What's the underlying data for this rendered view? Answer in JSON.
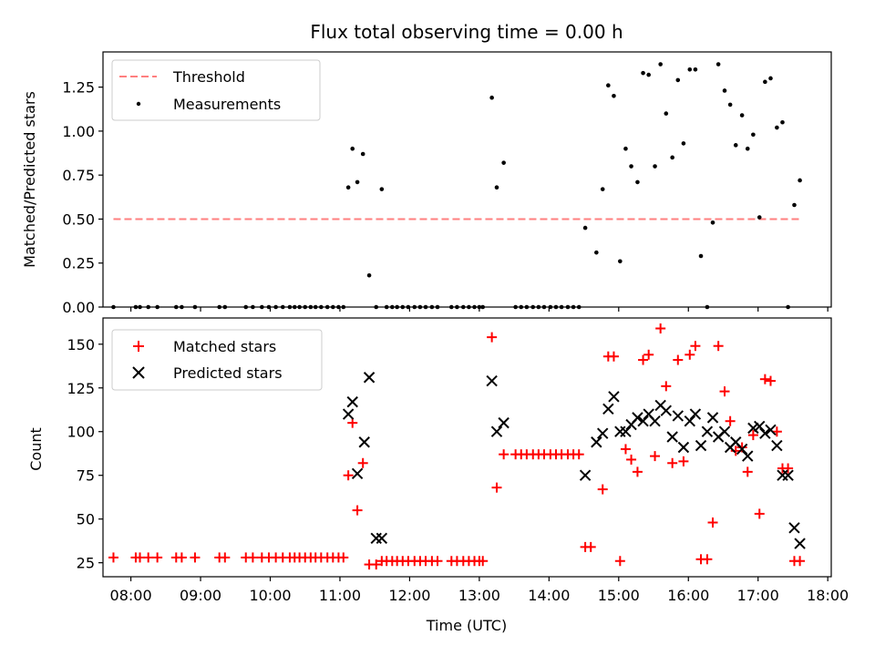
{
  "chart_data": [
    {
      "type": "scatter",
      "title": "Flux total observing time = 0.00 h",
      "xlabel": "",
      "ylabel": "Matched/Predicted stars",
      "x_ticks": [
        "08:00",
        "09:00",
        "10:00",
        "11:00",
        "12:00",
        "13:00",
        "14:00",
        "15:00",
        "16:00",
        "17:00",
        "18:00"
      ],
      "y_ticks": [
        "0.00",
        "0.25",
        "0.50",
        "0.75",
        "1.00",
        "1.25"
      ],
      "ylim": [
        0,
        1.45
      ],
      "xlim_hours": [
        7.6,
        18.05
      ],
      "legend_position": "upper-left",
      "series": [
        {
          "name": "Threshold",
          "kind": "line",
          "style": "dashed",
          "color": "#ff7f7f",
          "x": [
            7.75,
            17.6
          ],
          "y": [
            0.5,
            0.5
          ]
        },
        {
          "name": "Measurements",
          "kind": "points",
          "color": "#000000",
          "x": [
            7.75,
            8.07,
            8.13,
            8.25,
            8.38,
            8.65,
            8.73,
            8.92,
            9.27,
            9.35,
            9.65,
            9.75,
            9.88,
            9.98,
            10.08,
            10.18,
            10.28,
            10.35,
            10.42,
            10.5,
            10.58,
            10.65,
            10.73,
            10.82,
            10.9,
            10.98,
            11.05,
            11.12,
            11.18,
            11.25,
            11.33,
            11.42,
            11.52,
            11.6,
            11.67,
            11.75,
            11.82,
            11.9,
            11.98,
            12.07,
            12.15,
            12.23,
            12.32,
            12.4,
            12.6,
            12.68,
            12.77,
            12.85,
            12.93,
            13.0,
            13.05,
            13.18,
            13.25,
            13.35,
            13.52,
            13.6,
            13.68,
            13.77,
            13.85,
            13.93,
            14.02,
            14.1,
            14.18,
            14.27,
            14.35,
            14.43,
            14.52,
            14.68,
            14.77,
            14.85,
            14.93,
            15.02,
            15.1,
            15.18,
            15.27,
            15.35,
            15.43,
            15.52,
            15.6,
            15.68,
            15.77,
            15.85,
            15.93,
            16.02,
            16.1,
            16.18,
            16.27,
            16.35,
            16.43,
            16.52,
            16.6,
            16.68,
            16.77,
            16.85,
            16.93,
            17.02,
            17.1,
            17.18,
            17.27,
            17.35,
            17.43,
            17.52,
            17.6
          ],
          "y": [
            0,
            0,
            0,
            0,
            0,
            0,
            0,
            0,
            0,
            0,
            0,
            0,
            0,
            0,
            0,
            0,
            0,
            0,
            0,
            0,
            0,
            0,
            0,
            0,
            0,
            0,
            0,
            0.68,
            0.9,
            0.71,
            0.87,
            0.18,
            0,
            0.67,
            0,
            0,
            0,
            0,
            0,
            0,
            0,
            0,
            0,
            0,
            0,
            0,
            0,
            0,
            0,
            0,
            0,
            1.19,
            0.68,
            0.82,
            0,
            0,
            0,
            0,
            0,
            0,
            0,
            0,
            0,
            0,
            0,
            0,
            0.45,
            0.31,
            0.67,
            1.26,
            1.2,
            0.26,
            0.9,
            0.8,
            0.71,
            1.33,
            1.32,
            0.8,
            1.38,
            1.1,
            0.85,
            1.29,
            0.93,
            1.35,
            1.35,
            0.29,
            0,
            0.48,
            1.38,
            1.23,
            1.15,
            0.92,
            1.09,
            0.9,
            0.98,
            0.51,
            1.28,
            1.3,
            1.02,
            1.05,
            0,
            0.58,
            0.72
          ]
        }
      ]
    },
    {
      "type": "scatter",
      "title": "",
      "xlabel": "Time (UTC)",
      "ylabel": "Count",
      "x_ticks": [
        "08:00",
        "09:00",
        "10:00",
        "11:00",
        "12:00",
        "13:00",
        "14:00",
        "15:00",
        "16:00",
        "17:00",
        "18:00"
      ],
      "y_ticks": [
        "25",
        "50",
        "75",
        "100",
        "125",
        "150"
      ],
      "ylim": [
        17,
        165
      ],
      "xlim_hours": [
        7.6,
        18.05
      ],
      "legend_position": "upper-left",
      "series": [
        {
          "name": "Matched stars",
          "kind": "plus",
          "color": "#ff0000",
          "x": [
            7.75,
            8.07,
            8.13,
            8.25,
            8.38,
            8.65,
            8.73,
            8.92,
            9.27,
            9.35,
            9.65,
            9.75,
            9.88,
            9.98,
            10.08,
            10.18,
            10.28,
            10.35,
            10.42,
            10.5,
            10.58,
            10.65,
            10.73,
            10.82,
            10.9,
            10.98,
            11.05,
            11.12,
            11.18,
            11.25,
            11.33,
            11.42,
            11.52,
            11.6,
            11.67,
            11.75,
            11.82,
            11.9,
            11.98,
            12.07,
            12.15,
            12.23,
            12.32,
            12.4,
            12.6,
            12.68,
            12.77,
            12.85,
            12.93,
            13.0,
            13.05,
            13.18,
            13.25,
            13.35,
            13.52,
            13.6,
            13.68,
            13.77,
            13.85,
            13.93,
            14.02,
            14.1,
            14.18,
            14.27,
            14.35,
            14.43,
            14.52,
            14.6,
            14.77,
            14.85,
            14.93,
            15.02,
            15.1,
            15.18,
            15.27,
            15.35,
            15.43,
            15.52,
            15.6,
            15.68,
            15.77,
            15.85,
            15.93,
            16.02,
            16.1,
            16.18,
            16.27,
            16.35,
            16.43,
            16.52,
            16.6,
            16.68,
            16.77,
            16.85,
            16.93,
            17.02,
            17.1,
            17.18,
            17.27,
            17.35,
            17.43,
            17.52,
            17.6
          ],
          "y": [
            28,
            28,
            28,
            28,
            28,
            28,
            28,
            28,
            28,
            28,
            28,
            28,
            28,
            28,
            28,
            28,
            28,
            28,
            28,
            28,
            28,
            28,
            28,
            28,
            28,
            28,
            28,
            75,
            105,
            55,
            82,
            24,
            24,
            26,
            26,
            26,
            26,
            26,
            26,
            26,
            26,
            26,
            26,
            26,
            26,
            26,
            26,
            26,
            26,
            26,
            26,
            154,
            68,
            87,
            87,
            87,
            87,
            87,
            87,
            87,
            87,
            87,
            87,
            87,
            87,
            87,
            34,
            34,
            67,
            143,
            143,
            26,
            90,
            84,
            77,
            141,
            144,
            86,
            159,
            126,
            82,
            141,
            83,
            144,
            149,
            27,
            27,
            48,
            149,
            123,
            106,
            89,
            91,
            77,
            98,
            53,
            130,
            129,
            100,
            79,
            79,
            26,
            26
          ]
        },
        {
          "name": "Predicted stars",
          "kind": "x",
          "color": "#000000",
          "x": [
            11.12,
            11.18,
            11.25,
            11.35,
            11.42,
            11.52,
            11.6,
            13.18,
            13.25,
            13.35,
            14.52,
            14.68,
            14.77,
            14.85,
            14.93,
            15.02,
            15.1,
            15.18,
            15.27,
            15.35,
            15.43,
            15.52,
            15.6,
            15.68,
            15.77,
            15.85,
            15.93,
            16.02,
            16.1,
            16.18,
            16.27,
            16.35,
            16.43,
            16.52,
            16.6,
            16.68,
            16.77,
            16.85,
            16.93,
            17.02,
            17.1,
            17.18,
            17.27,
            17.35,
            17.43,
            17.52,
            17.6
          ],
          "y": [
            110,
            117,
            76,
            94,
            131,
            39,
            39,
            129,
            100,
            105,
            75,
            94,
            99,
            113,
            120,
            100,
            100,
            104,
            108,
            106,
            110,
            106,
            115,
            112,
            97,
            109,
            91,
            106,
            110,
            92,
            100,
            108,
            97,
            100,
            91,
            94,
            90,
            86,
            102,
            103,
            99,
            101,
            92,
            75,
            75,
            45,
            36
          ]
        }
      ]
    }
  ]
}
